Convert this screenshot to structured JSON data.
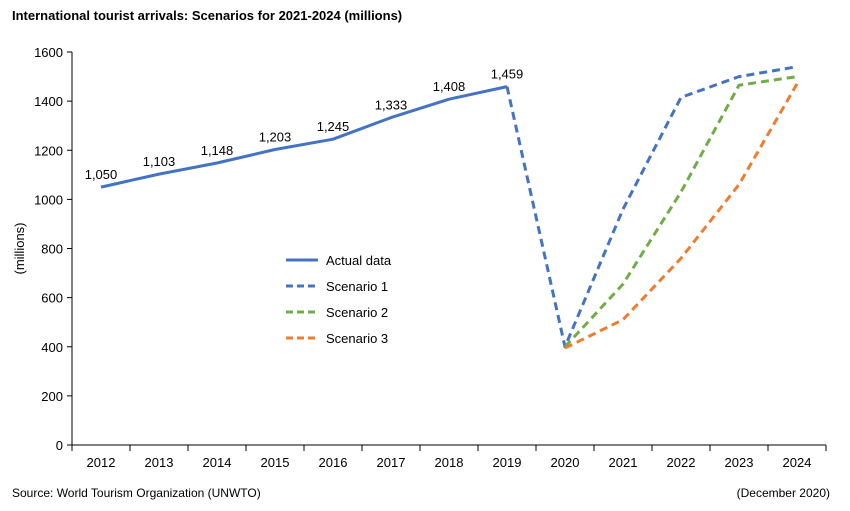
{
  "chart_data": {
    "type": "line",
    "title": "International tourist arrivals: Scenarios for 2021-2024 (millions)",
    "ylabel": "(millions)",
    "xlabel": "",
    "ylim": [
      0,
      1600
    ],
    "yticks": [
      0,
      200,
      400,
      600,
      800,
      1000,
      1200,
      1400,
      1600
    ],
    "categories": [
      "2012",
      "2013",
      "2014",
      "2015",
      "2016",
      "2017",
      "2018",
      "2019",
      "2020",
      "2021",
      "2022",
      "2023",
      "2024"
    ],
    "grid": false,
    "legend_position": "center-left",
    "series": [
      {
        "name": "Actual data",
        "color": "#4472C4",
        "dash": false,
        "x": [
          "2012",
          "2013",
          "2014",
          "2015",
          "2016",
          "2017",
          "2018",
          "2019"
        ],
        "values": [
          1050,
          1103,
          1148,
          1203,
          1245,
          1333,
          1408,
          1459
        ],
        "data_labels": [
          "1,050",
          "1,103",
          "1,148",
          "1,203",
          "1,245",
          "1,333",
          "1,408",
          "1,459"
        ]
      },
      {
        "name": "Scenario 1",
        "color": "#4472C4",
        "dash": true,
        "x": [
          "2019",
          "2020",
          "2021",
          "2022",
          "2023",
          "2024"
        ],
        "values": [
          1459,
          400,
          960,
          1415,
          1500,
          1540
        ]
      },
      {
        "name": "Scenario 2",
        "color": "#70AD47",
        "dash": true,
        "x": [
          "2020",
          "2021",
          "2022",
          "2023",
          "2024"
        ],
        "values": [
          400,
          655,
          1030,
          1465,
          1500
        ]
      },
      {
        "name": "Scenario 3",
        "color": "#ED7D31",
        "dash": true,
        "x": [
          "2020",
          "2021",
          "2022",
          "2023",
          "2024"
        ],
        "values": [
          395,
          510,
          760,
          1060,
          1470
        ]
      }
    ]
  },
  "footer": {
    "source": "Source: World Tourism Organization (UNWTO)",
    "date": "(December 2020)"
  }
}
